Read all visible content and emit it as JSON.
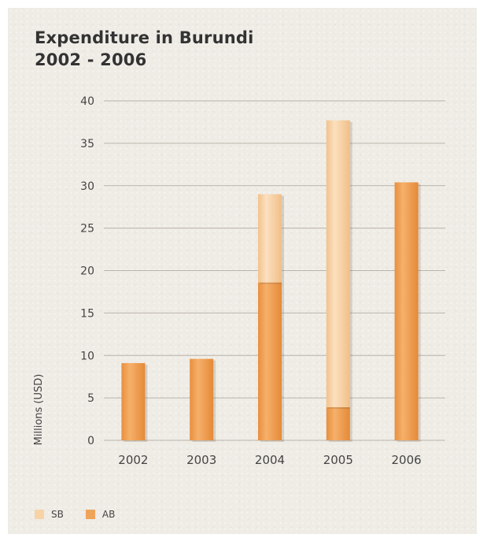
{
  "chart_data": {
    "type": "bar",
    "stacked": true,
    "title": "Expenditure in Burundi",
    "subtitle": "2002 - 2006",
    "xlabel": "",
    "ylabel": "Millions (USD)",
    "ylim": [
      0,
      40
    ],
    "yticks": [
      0,
      5,
      10,
      15,
      20,
      25,
      30,
      35,
      40
    ],
    "grid": true,
    "legend_position": "bottom-left",
    "categories": [
      "2002",
      "2003",
      "2004",
      "2005",
      "2006"
    ],
    "series": [
      {
        "name": "AB",
        "values": [
          9.1,
          9.6,
          18.6,
          3.9,
          30.4
        ],
        "color": "#f0a45a"
      },
      {
        "name": "SB",
        "values": [
          0,
          0,
          10.4,
          33.8,
          0
        ],
        "color": "#f8d3a6"
      }
    ]
  }
}
